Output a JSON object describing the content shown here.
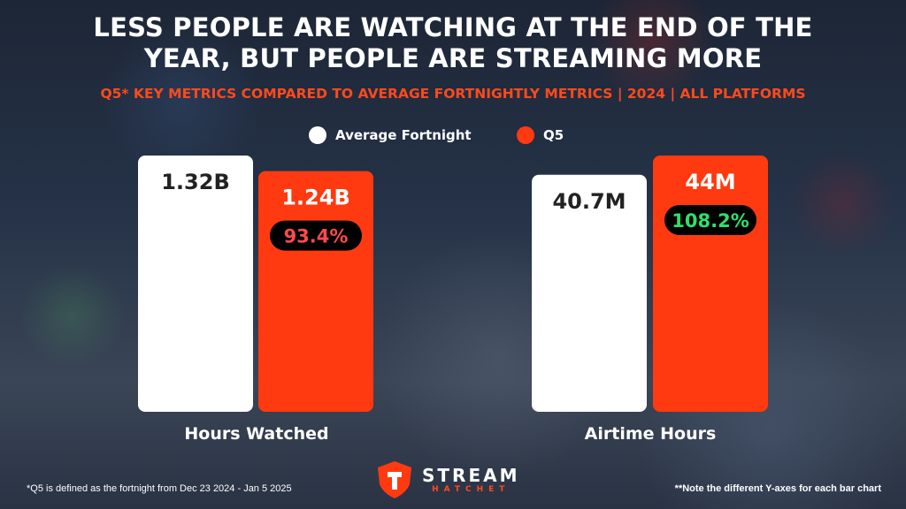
{
  "title": "LESS PEOPLE ARE WATCHING AT THE END OF THE\nYEAR, BUT PEOPLE ARE STREAMING MORE",
  "subtitle": "Q5* KEY METRICS COMPARED TO AVERAGE FORTNIGHTLY METRICS | 2024 | ALL PLATFORMS",
  "legend": [
    {
      "label": "Average Fortnight",
      "color": "#ffffff"
    },
    {
      "label": "Q5",
      "color": "#ff3a10"
    }
  ],
  "chart_data": [
    {
      "type": "bar",
      "xlabel": "Hours Watched",
      "categories": [
        "Average Fortnight",
        "Q5"
      ],
      "values": [
        1.32,
        1.24
      ],
      "unit": "B",
      "value_labels": [
        "1.32B",
        "1.24B"
      ],
      "comparison_label": "93.4%",
      "comparison_status": "decrease",
      "ylim": [
        0,
        1.32
      ],
      "colors": [
        "#ffffff",
        "#ff3a10"
      ]
    },
    {
      "type": "bar",
      "xlabel": "Airtime Hours",
      "categories": [
        "Average Fortnight",
        "Q5"
      ],
      "values": [
        40.7,
        44
      ],
      "unit": "M",
      "value_labels": [
        "40.7M",
        "44M"
      ],
      "comparison_label": "108.2%",
      "comparison_status": "increase",
      "ylim": [
        0,
        44
      ],
      "colors": [
        "#ffffff",
        "#ff3a10"
      ]
    }
  ],
  "colors": {
    "decrease": "#ff4a4a",
    "increase": "#2ee06a",
    "pill_bg": "#000000"
  },
  "footnote_left": "*Q5 is defined as the fortnight from Dec 23 2024 - Jan 5 2025",
  "footnote_right": "**Note the different Y-axes for each bar chart",
  "logo": {
    "line1": "STREAM",
    "line2": "HATCHET",
    "icon": "hatchet-shield-icon"
  }
}
